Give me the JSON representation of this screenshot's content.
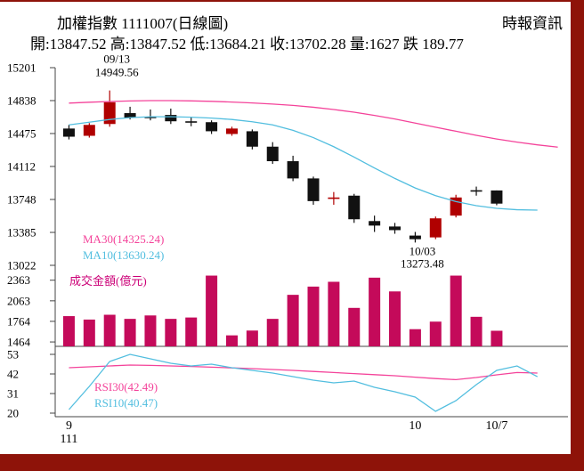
{
  "header": {
    "title": "加權指數 1111007(日線圖)",
    "source": "時報資訊",
    "quote": "開:13847.52 高:13847.52 低:13684.21 收:13702.28 量:1627 跌 189.77"
  },
  "colors": {
    "up": "#b00000",
    "down": "#111111",
    "ma30": "#f4439a",
    "ma10": "#52bedf",
    "rsi30": "#f4439a",
    "rsi10": "#52bedf",
    "volume": "#c40a5a",
    "volume_title": "#cc0077",
    "axis": "#444444",
    "text": "#000000",
    "frame": "#8e1309"
  },
  "chart_data": {
    "type": "candlestick+volume+rsi",
    "title": "加權指數 1111007(日線圖)",
    "main": {
      "ylim": [
        13022,
        15201
      ],
      "yticks": [
        15201,
        14838,
        14475,
        14112,
        13748,
        13385,
        13022
      ],
      "candles": [
        [
          14530,
          14570,
          14410,
          14440
        ],
        [
          14450,
          14590,
          14430,
          14570
        ],
        [
          14580,
          14949.56,
          14550,
          14820
        ],
        [
          14700,
          14770,
          14630,
          14650
        ],
        [
          14660,
          14740,
          14620,
          14650
        ],
        [
          14680,
          14750,
          14580,
          14610
        ],
        [
          14610,
          14660,
          14555,
          14600
        ],
        [
          14600,
          14620,
          14470,
          14500
        ],
        [
          14470,
          14550,
          14450,
          14530
        ],
        [
          14500,
          14520,
          14300,
          14330
        ],
        [
          14330,
          14380,
          14140,
          14170
        ],
        [
          14170,
          14230,
          13950,
          13980
        ],
        [
          13980,
          14000,
          13690,
          13730
        ],
        [
          13760,
          13830,
          13690,
          13770
        ],
        [
          13790,
          13810,
          13490,
          13530
        ],
        [
          13510,
          13570,
          13390,
          13460
        ],
        [
          13450,
          13490,
          13370,
          13410
        ],
        [
          13350,
          13390,
          13273.48,
          13310
        ],
        [
          13330,
          13560,
          13310,
          13540
        ],
        [
          13570,
          13800,
          13550,
          13770
        ],
        [
          13850,
          13890,
          13790,
          13845
        ],
        [
          13847.52,
          13847.52,
          13684.21,
          13702.28
        ]
      ],
      "ma30": {
        "label": "MA30(14325.24)",
        "values": [
          14810,
          14820,
          14828,
          14834,
          14838,
          14838,
          14835,
          14830,
          14822,
          14812,
          14800,
          14785,
          14765,
          14740,
          14710,
          14675,
          14635,
          14590,
          14545,
          14500,
          14455,
          14415,
          14380,
          14350,
          14325.24
        ]
      },
      "ma10": {
        "label": "MA10(13630.24)",
        "values": [
          14570,
          14600,
          14630,
          14650,
          14660,
          14660,
          14655,
          14645,
          14630,
          14605,
          14570,
          14510,
          14430,
          14330,
          14215,
          14095,
          13980,
          13875,
          13790,
          13725,
          13680,
          13650,
          13635,
          13630.24
        ]
      },
      "annotations": [
        {
          "slot": 2,
          "lines": [
            "09/13",
            "14949.56"
          ],
          "position": "above"
        },
        {
          "slot": 17,
          "lines": [
            "10/03",
            "13273.48"
          ],
          "position": "below"
        }
      ]
    },
    "volume": {
      "label": "成交金額(億元)",
      "yticks": [
        2363,
        2063,
        1764,
        1464
      ],
      "values": [
        1840,
        1790,
        1860,
        1800,
        1850,
        1800,
        1820,
        2430,
        1560,
        1630,
        1800,
        2150,
        2270,
        2340,
        1960,
        2400,
        2200,
        1650,
        1760,
        2430,
        1830,
        1627
      ]
    },
    "rsi": {
      "yticks": [
        53,
        42,
        31,
        20
      ],
      "rsi30": {
        "label": "RSI30(42.49)",
        "values": [
          45.5,
          46,
          46.5,
          47,
          46.8,
          46.5,
          46.2,
          45.8,
          45.4,
          45,
          44.5,
          44,
          43.4,
          42.8,
          42.2,
          41.6,
          41,
          40.2,
          39.4,
          38.8,
          40,
          41.5,
          42.8,
          42.49
        ]
      },
      "rsi10": {
        "label": "RSI10(40.47)",
        "values": [
          22,
          35,
          49,
          53,
          50.5,
          48,
          46.5,
          47.5,
          45.5,
          44,
          42.5,
          40.5,
          38.5,
          37,
          38,
          34.5,
          32,
          29,
          21,
          27,
          36,
          44,
          46.5,
          40.47
        ]
      }
    },
    "xaxis": {
      "ticks": [
        {
          "label": "9",
          "slot": 0
        },
        {
          "label": "10",
          "slot": 17
        },
        {
          "label": "10/7",
          "slot": 21
        }
      ],
      "year": "111"
    }
  }
}
